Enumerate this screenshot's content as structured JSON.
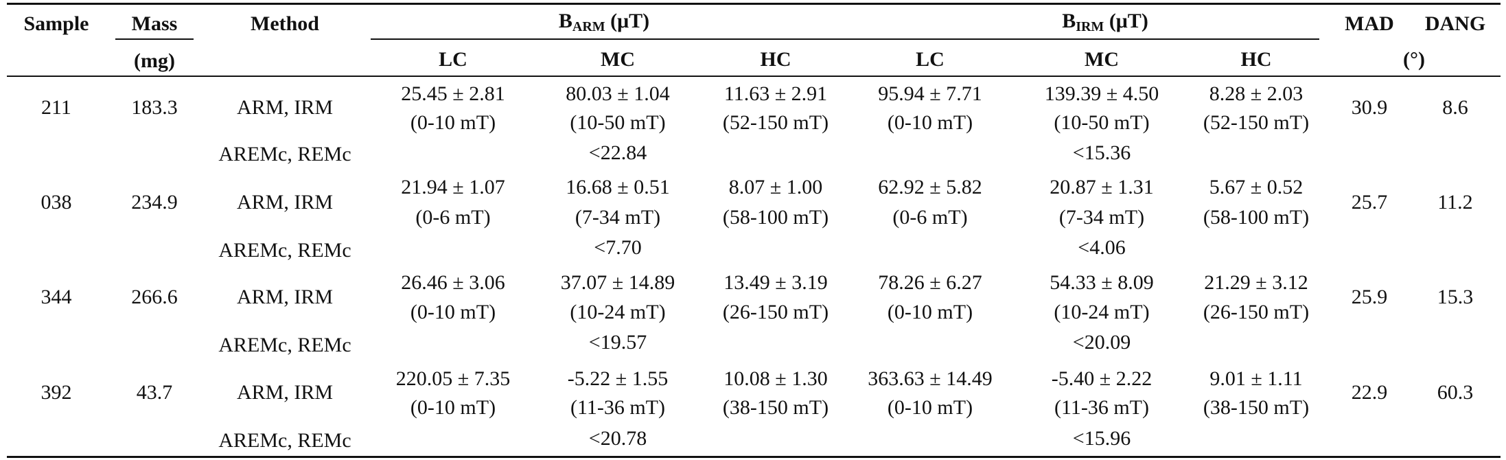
{
  "header": {
    "sample": "Sample",
    "mass": "Mass",
    "mass_unit": "(mg)",
    "method": "Method",
    "b_arm_main": "B",
    "b_arm_sub": "ARM",
    "b_arm_unit": " (μT)",
    "b_irm_main": "B",
    "b_irm_sub": "IRM",
    "b_irm_unit": " (μT)",
    "mad": "MAD",
    "dang": "DANG",
    "deg_unit": "(°)",
    "lc": "LC",
    "mc": "MC",
    "hc": "HC"
  },
  "rows": [
    {
      "sample": "211",
      "mass": "183.3",
      "method_main": "ARM, IRM",
      "method_alt": "AREMc, REMc",
      "arm_lc": "25.45 ± 2.81",
      "arm_lc_range": "(0-10 mT)",
      "arm_mc": "80.03 ± 1.04",
      "arm_mc_range": "(10-50 mT)",
      "arm_hc": "11.63 ± 2.91",
      "arm_hc_range": "(52-150 mT)",
      "irm_lc": "95.94 ± 7.71",
      "irm_lc_range": "(0-10 mT)",
      "irm_mc": "139.39 ± 4.50",
      "irm_mc_range": "(10-50 mT)",
      "irm_hc": "8.28 ± 2.03",
      "irm_hc_range": "(52-150 mT)",
      "arem": "<22.84",
      "rem": "<15.36",
      "mad": "30.9",
      "dang": "8.6"
    },
    {
      "sample": "038",
      "mass": "234.9",
      "method_main": "ARM, IRM",
      "method_alt": "AREMc, REMc",
      "arm_lc": "21.94 ± 1.07",
      "arm_lc_range": "(0-6 mT)",
      "arm_mc": "16.68 ± 0.51",
      "arm_mc_range": "(7-34 mT)",
      "arm_hc": "8.07 ± 1.00",
      "arm_hc_range": "(58-100 mT)",
      "irm_lc": "62.92 ± 5.82",
      "irm_lc_range": "(0-6 mT)",
      "irm_mc": "20.87 ± 1.31",
      "irm_mc_range": "(7-34 mT)",
      "irm_hc": "5.67 ± 0.52",
      "irm_hc_range": "(58-100 mT)",
      "arem": "<7.70",
      "rem": "<4.06",
      "mad": "25.7",
      "dang": "11.2"
    },
    {
      "sample": "344",
      "mass": "266.6",
      "method_main": "ARM, IRM",
      "method_alt": "AREMc, REMc",
      "arm_lc": "26.46 ± 3.06",
      "arm_lc_range": "(0-10 mT)",
      "arm_mc": "37.07 ± 14.89",
      "arm_mc_range": "(10-24 mT)",
      "arm_hc": "13.49 ± 3.19",
      "arm_hc_range": "(26-150 mT)",
      "irm_lc": "78.26 ± 6.27",
      "irm_lc_range": "(0-10 mT)",
      "irm_mc": "54.33 ± 8.09",
      "irm_mc_range": "(10-24 mT)",
      "irm_hc": "21.29 ± 3.12",
      "irm_hc_range": "(26-150 mT)",
      "arem": "<19.57",
      "rem": "<20.09",
      "mad": "25.9",
      "dang": "15.3"
    },
    {
      "sample": "392",
      "mass": "43.7",
      "method_main": "ARM, IRM",
      "method_alt": "AREMc, REMc",
      "arm_lc": "220.05 ± 7.35",
      "arm_lc_range": "(0-10 mT)",
      "arm_mc": "-5.22 ± 1.55",
      "arm_mc_range": "(11-36 mT)",
      "arm_hc": "10.08 ± 1.30",
      "arm_hc_range": "(38-150 mT)",
      "irm_lc": "363.63 ± 14.49",
      "irm_lc_range": "(0-10 mT)",
      "irm_mc": "-5.40 ± 2.22",
      "irm_mc_range": "(11-36 mT)",
      "irm_hc": "9.01 ± 1.11",
      "irm_hc_range": "(38-150 mT)",
      "arem": "<20.78",
      "rem": "<15.96",
      "mad": "22.9",
      "dang": "60.3"
    }
  ]
}
